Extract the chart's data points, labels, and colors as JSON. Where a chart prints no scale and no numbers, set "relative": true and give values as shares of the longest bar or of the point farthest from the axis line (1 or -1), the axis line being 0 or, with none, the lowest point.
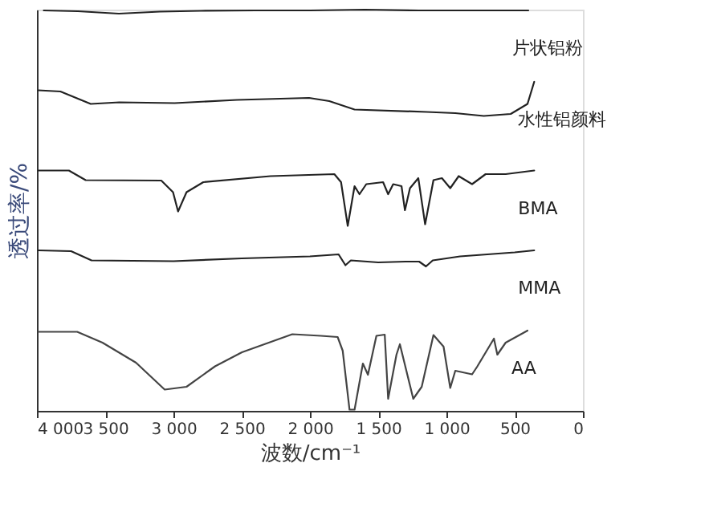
{
  "chart_data": {
    "type": "line",
    "relative": true,
    "xlabel": "波数/cm⁻¹",
    "ylabel": "透过率/%",
    "xlim": [
      4000,
      0
    ],
    "xticks": [
      {
        "value": 4000,
        "label": "4 000"
      },
      {
        "value": 3500,
        "label": "3 500"
      },
      {
        "value": 3000,
        "label": "3 000"
      },
      {
        "value": 2500,
        "label": "2 500"
      },
      {
        "value": 2000,
        "label": "2 000"
      },
      {
        "value": 1500,
        "label": "1 500"
      },
      {
        "value": 1000,
        "label": "1 000"
      },
      500,
      0
    ],
    "tick_labels": "x",
    "grid": false,
    "legend": false,
    "marker": "none",
    "line_style": "solid",
    "series": [
      {
        "name": "片状铝粉",
        "color": "#222222",
        "x": [
          3950,
          3700,
          3400,
          3100,
          2800,
          2400,
          2000,
          1600,
          1200,
          800,
          400
        ],
        "values": [
          0.998,
          0.996,
          0.99,
          0.995,
          0.997,
          0.998,
          0.998,
          1.0,
          0.998,
          0.998,
          0.998
        ]
      },
      {
        "name": "水性铝颜料",
        "color": "#222222",
        "x": [
          3991,
          3828,
          3606,
          3397,
          2991,
          2535,
          2006,
          1858,
          1673,
          1144,
          935,
          726,
          529,
          406,
          357
        ],
        "values": [
          0.799,
          0.796,
          0.765,
          0.769,
          0.767,
          0.775,
          0.78,
          0.772,
          0.751,
          0.745,
          0.742,
          0.735,
          0.74,
          0.765,
          0.82
        ]
      },
      {
        "name": "BMA",
        "color": "#222222",
        "x": [
          3990,
          3766,
          3643,
          3089,
          3003,
          2966,
          2904,
          2781,
          2289,
          1821,
          1772,
          1723,
          1673,
          1637,
          1587,
          1464,
          1427,
          1390,
          1329,
          1304,
          1267,
          1206,
          1156,
          1095,
          1033,
          972,
          910,
          812,
          713,
          566,
          357
        ],
        "values": [
          0.599,
          0.599,
          0.575,
          0.574,
          0.545,
          0.497,
          0.545,
          0.57,
          0.585,
          0.59,
          0.57,
          0.461,
          0.56,
          0.54,
          0.565,
          0.57,
          0.54,
          0.565,
          0.56,
          0.5,
          0.555,
          0.58,
          0.465,
          0.575,
          0.58,
          0.555,
          0.585,
          0.565,
          0.59,
          0.59,
          0.599
        ]
      },
      {
        "name": "MMA",
        "color": "#222222",
        "x": [
          3990,
          3750,
          3600,
          3000,
          2500,
          2000,
          1790,
          1740,
          1700,
          1500,
          1300,
          1200,
          1150,
          1100,
          900,
          700,
          500,
          357
        ],
        "values": [
          0.4,
          0.398,
          0.375,
          0.373,
          0.38,
          0.385,
          0.39,
          0.363,
          0.375,
          0.37,
          0.372,
          0.372,
          0.36,
          0.375,
          0.385,
          0.39,
          0.395,
          0.4
        ]
      },
      {
        "name": "AA",
        "color": "#444444",
        "x": [
          3990,
          3705,
          3520,
          3274,
          3064,
          2904,
          2695,
          2498,
          2129,
          1920,
          1797,
          1760,
          1710,
          1673,
          1612,
          1575,
          1513,
          1452,
          1427,
          1366,
          1341,
          1243,
          1181,
          1095,
          1021,
          972,
          935,
          812,
          775,
          652,
          627,
          566,
          406
        ],
        "values": [
          0.197,
          0.197,
          0.17,
          0.12,
          0.053,
          0.06,
          0.111,
          0.146,
          0.191,
          0.187,
          0.184,
          0.15,
          0.003,
          0.003,
          0.118,
          0.09,
          0.187,
          0.19,
          0.03,
          0.14,
          0.166,
          0.03,
          0.06,
          0.189,
          0.16,
          0.057,
          0.1,
          0.091,
          0.11,
          0.18,
          0.14,
          0.17,
          0.2
        ]
      }
    ]
  }
}
